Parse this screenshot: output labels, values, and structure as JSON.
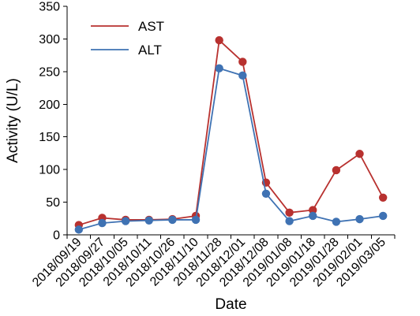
{
  "chart_data": {
    "type": "line",
    "title": "",
    "xlabel": "Date",
    "ylabel": "Activity (U/L)",
    "ylim": [
      0,
      350
    ],
    "yticks": [
      0,
      50,
      100,
      150,
      200,
      250,
      300,
      350
    ],
    "grid": false,
    "legend_position": "top-left",
    "categories": [
      "2018/09/19",
      "2018/09/27",
      "2018/10/05",
      "2018/10/11",
      "2018/10/26",
      "2018/11/10",
      "2018/11/28",
      "2018/12/01",
      "2018/12/08",
      "2019/01/08",
      "2019/01/18",
      "2019/01/28",
      "2019/02/01",
      "2019/03/05"
    ],
    "series": [
      {
        "name": "AST",
        "color": "#b8312f",
        "values": [
          15,
          26,
          23,
          23,
          24,
          29,
          298,
          265,
          80,
          34,
          38,
          99,
          124,
          57
        ]
      },
      {
        "name": "ALT",
        "color": "#3f72b3",
        "values": [
          8,
          18,
          21,
          22,
          23,
          23,
          255,
          244,
          63,
          21,
          29,
          20,
          24,
          29
        ]
      }
    ]
  }
}
